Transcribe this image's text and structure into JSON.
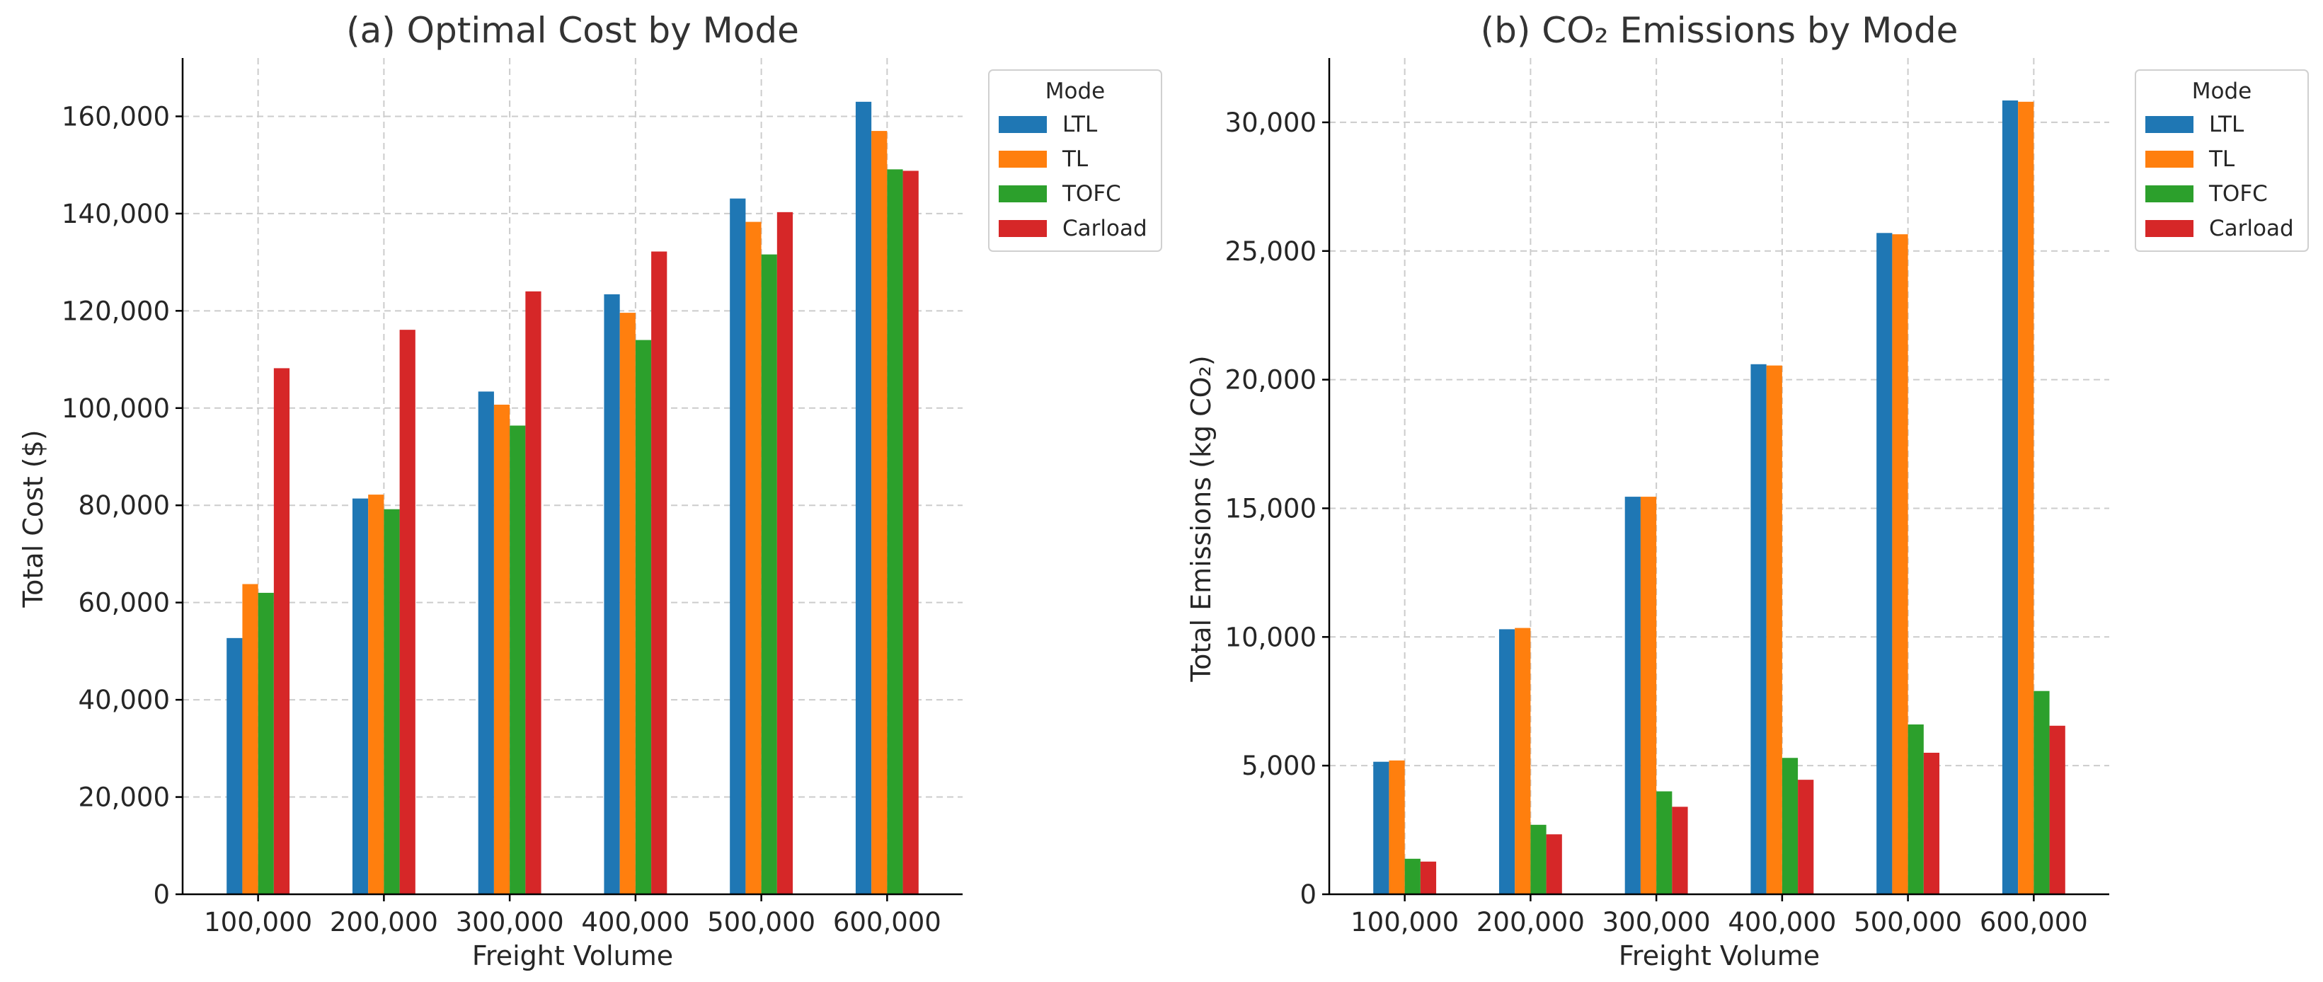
{
  "figure": {
    "background": "#ffffff"
  },
  "colors": {
    "LTL": "#1f77b4",
    "TL": "#ff7f0e",
    "TOFC": "#2ca02c",
    "Carload": "#d62728"
  },
  "chart_data": [
    {
      "type": "bar",
      "title": "(a) Optimal Cost by Mode",
      "xlabel": "Freight Volume",
      "ylabel": "Total Cost ($)",
      "ylim": [
        0,
        172000
      ],
      "yticks": [
        0,
        20000,
        40000,
        60000,
        80000,
        100000,
        120000,
        140000,
        160000
      ],
      "ytick_labels": [
        "0",
        "20,000",
        "40,000",
        "60,000",
        "80,000",
        "100,000",
        "120,000",
        "140,000",
        "160,000"
      ],
      "categories": [
        "100,000",
        "200,000",
        "300,000",
        "400,000",
        "500,000",
        "600,000"
      ],
      "grid": true,
      "legend": {
        "title": "Mode",
        "placement": "outside-top-right"
      },
      "series": [
        {
          "name": "LTL",
          "values": [
            52700,
            81400,
            103400,
            123400,
            143100,
            163000
          ]
        },
        {
          "name": "TL",
          "values": [
            63800,
            82200,
            100700,
            119600,
            138300,
            157000
          ]
        },
        {
          "name": "TOFC",
          "values": [
            62000,
            79200,
            96400,
            114000,
            131600,
            149100
          ]
        },
        {
          "name": "Carload",
          "values": [
            108200,
            116100,
            124000,
            132200,
            140300,
            148800
          ]
        }
      ]
    },
    {
      "type": "bar",
      "title": "(b) CO₂ Emissions by Mode",
      "xlabel": "Freight Volume",
      "ylabel": "Total Emissions (kg CO₂)",
      "ylim": [
        0,
        32500
      ],
      "yticks": [
        0,
        5000,
        10000,
        15000,
        20000,
        25000,
        30000
      ],
      "ytick_labels": [
        "0",
        "5,000",
        "10,000",
        "15,000",
        "20,000",
        "25,000",
        "30,000"
      ],
      "categories": [
        "100,000",
        "200,000",
        "300,000",
        "400,000",
        "500,000",
        "600,000"
      ],
      "grid": true,
      "legend": {
        "title": "Mode",
        "placement": "outside-top-right"
      },
      "series": [
        {
          "name": "LTL",
          "values": [
            5150,
            10300,
            15450,
            20600,
            25700,
            30850
          ]
        },
        {
          "name": "TL",
          "values": [
            5200,
            10350,
            15450,
            20550,
            25650,
            30800
          ]
        },
        {
          "name": "TOFC",
          "values": [
            1380,
            2700,
            4000,
            5300,
            6600,
            7900
          ]
        },
        {
          "name": "Carload",
          "values": [
            1270,
            2330,
            3400,
            4450,
            5500,
            6550
          ]
        }
      ]
    }
  ]
}
